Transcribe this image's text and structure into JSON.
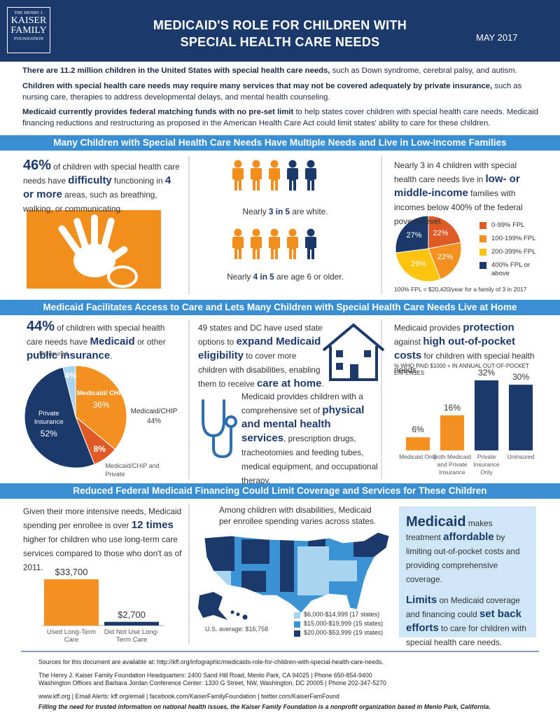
{
  "header": {
    "logo": [
      "THE HENRY J.",
      "KAISER",
      "FAMILY",
      "FOUNDATION"
    ],
    "title": [
      "MEDICAID'S ROLE FOR CHILDREN WITH",
      "SPECIAL HEALTH CARE NEEDS"
    ],
    "date": "MAY 2017"
  },
  "intro": {
    "p1": [
      "There are 11.2 million children in the United States with special health care needs,",
      " such as Down syndrome, cerebral palsy, and autism."
    ],
    "p2": [
      "Children with special health care needs may require many services that may not be covered adequately by private insurance,",
      " such as nursing care, therapies to address developmental delays, and mental health counseling."
    ],
    "p3": [
      "Medicaid currently provides federal matching funds with no pre-set limit",
      " to help states cover children with special health care needs. Medicaid financing reductions and restructuring as proposed in the American Health Care Act could limit states' ability to care for these children."
    ]
  },
  "s1": {
    "title": "Many Children with Special Health Care Needs Have Multiple Needs and Live in Low-Income Families",
    "left": [
      "46%",
      " of children with special health care needs have ",
      "difficulty",
      " functioning in ",
      "4 or more",
      " areas, such as breathing, walking, or communicating."
    ],
    "fig1": [
      "Nearly ",
      "3 in 5",
      " are white."
    ],
    "fig2": [
      "Nearly ",
      "4 in 5",
      " are age 6 or older."
    ],
    "right": [
      "Nearly 3 in 4 children with special health care needs live in ",
      "low- or middle-income",
      " families with incomes below 400% of the federal poverty level."
    ]
  },
  "s2": {
    "title": "Medicaid Facilitates Access to Care and Lets Many Children with Special Health Care Needs Live at Home",
    "left": [
      "44%",
      " of children with special health care needs have ",
      "Medicaid",
      " or other ",
      "public insurance",
      "."
    ],
    "middle1": [
      "49 states and DC have used state options to ",
      "expand Medicaid eligibility",
      " to cover more children with disabilities, enabling them to receive ",
      "care at home",
      "."
    ],
    "middle2": [
      "Medicaid provides children with a comprehensive set of ",
      "physical and mental health services",
      ", prescription drugs, tracheotomies and feeding tubes, medical equipment, and occupational therapy."
    ],
    "right": [
      "Medicaid provides ",
      "protection",
      " against ",
      "high out-of-pocket costs",
      " for children with special health needs."
    ]
  },
  "s3": {
    "title": "Reduced Federal Medicaid Financing Could Limit Coverage and Services for These Children",
    "left": [
      "Given their more intensive needs, Medicaid spending per enrollee is over ",
      "12 times",
      " higher for children who use long-term care services compared to those who don't as of 2011."
    ],
    "middle": "Among children with disabilities, Medicaid per enrollee spending varies across states.",
    "box1": [
      "Medicaid",
      " makes treatment ",
      "affordable",
      " by limiting out-of-pocket costs and providing comprehensive coverage."
    ],
    "box2": [
      "Limits",
      " on Medicaid coverage and financing could ",
      "set back efforts",
      " to care for children with special health care needs."
    ]
  },
  "map": {
    "legend": [
      "$6,000-$14,999 (17 states)",
      "$15,000-$19,999 (15 states)",
      "$20,000-$53,999 (19 states)"
    ],
    "colors": [
      "#a9d4f0",
      "#3b93d6",
      "#1b3a6b"
    ],
    "average": "U.S. average: $16,758"
  },
  "chart_data": [
    {
      "type": "pie",
      "categories": [
        "0-99% FPL",
        "100-199% FPL",
        "200-399% FPL",
        "400% FPL or above"
      ],
      "values": [
        22,
        22,
        29,
        27
      ],
      "value_labels": [
        "22%",
        "22%",
        "29%",
        "27%"
      ],
      "colors": [
        "#e05a26",
        "#f39020",
        "#fcc30f",
        "#1b3a6b"
      ],
      "legend": true,
      "footnote": "100% FPL = $20,420/year for a family of 3 in 2017"
    },
    {
      "type": "pie",
      "categories": [
        "Medicaid/ CHIP",
        "Medicaid/CHIP and Private",
        "Private Insurance",
        "Uninsured"
      ],
      "values": [
        36,
        8,
        52,
        4
      ],
      "value_labels": [
        "36%",
        "8%",
        "52%",
        "4%"
      ],
      "colors": [
        "#f39020",
        "#e05a26",
        "#1b3a6b",
        "#a9d4f0"
      ],
      "legend": false,
      "annotations": [
        "Medicaid/CHIP",
        "44%"
      ]
    },
    {
      "type": "bar",
      "subtitle": "% WHO PAID $1000 + IN ANNUAL OUT-OF-POCKET EXPENSES",
      "categories": [
        "Medicaid Only",
        "Both Medicaid and Private Insurance",
        "Private Insurance Only",
        "Uninsured"
      ],
      "values": [
        6,
        16,
        32,
        30
      ],
      "value_labels": [
        "6%",
        "16%",
        "32%",
        "30%"
      ],
      "colors": [
        "#f39020",
        "#f39020",
        "#1b3a6b",
        "#1b3a6b"
      ]
    },
    {
      "type": "bar",
      "categories": [
        "Used Long-Term Care",
        "Did Not Use Long-Term Care"
      ],
      "values": [
        33700,
        2700
      ],
      "value_labels": [
        "$33,700",
        "$2,700"
      ],
      "colors": [
        "#f39020",
        "#1b3a6b"
      ]
    }
  ],
  "footer": [
    "Sources for this document are available at: http://kff.org/infographic/medicaids-role-for-children-with-special-health-care-needs.",
    "The Henry J. Kaiser Family Foundation Headquarters: 2400 Sand Hill Road, Menlo Park, CA 94025 | Phone 650-854-9400",
    "Washington Offices and Barbara Jordan Conference Center: 1330 G Street, NW, Washington, DC 20005 | Phone 202-347-5270",
    "www.kff.org | Email Alerts: kff.org/email | facebook.com/KaiserFamilyFoundation | twitter.com/KaiserFamFound",
    "Filling the need for trusted information on national health issues, the Kaiser Family Foundation is a nonprofit organization based in Menlo Park, California."
  ]
}
